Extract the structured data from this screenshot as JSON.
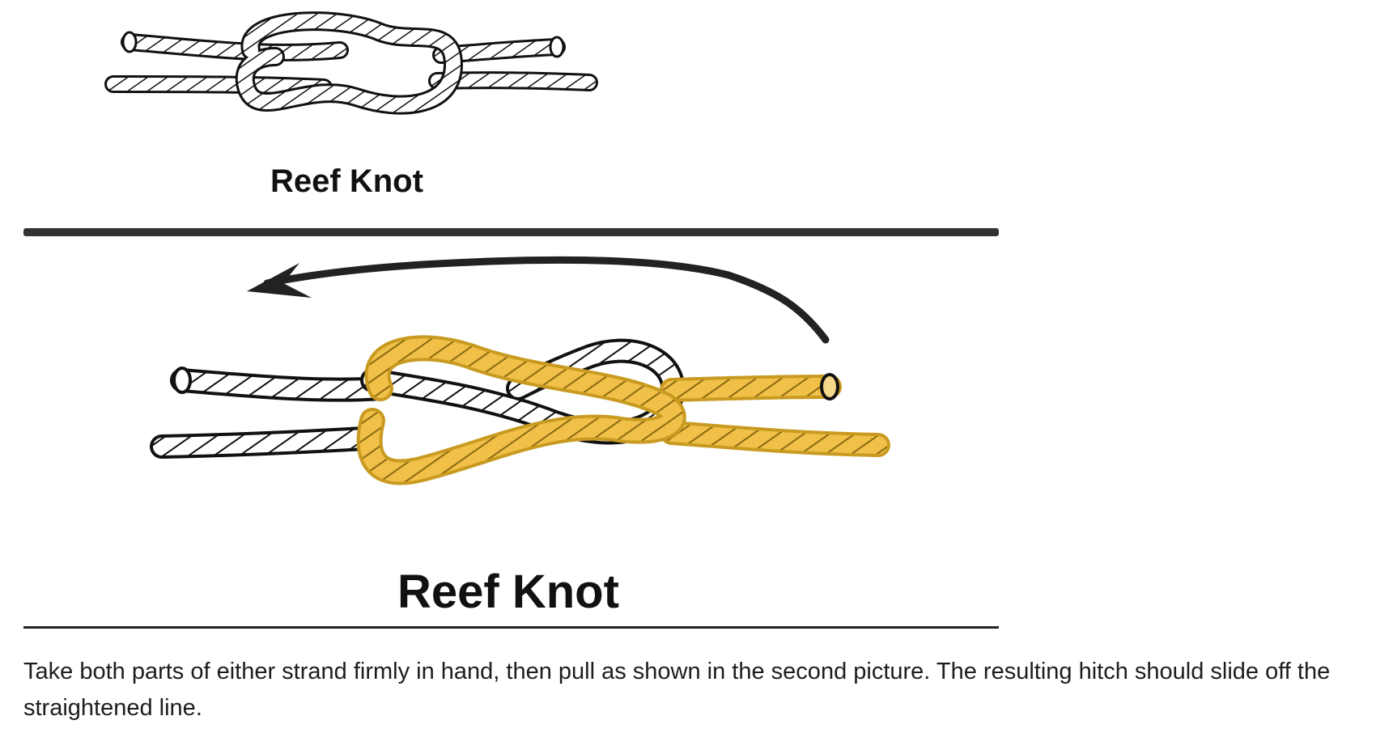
{
  "figures": [
    {
      "caption": "Reef Knot"
    },
    {
      "caption": "Reef Knot"
    }
  ],
  "colors": {
    "rope_plain": "#ffffff",
    "rope_outline": "#111111",
    "rope_highlight": "#f0c048",
    "arrow": "#222222",
    "rule": "#333333"
  },
  "icons": [
    "reef-knot-illustration",
    "reef-knot-highlighted-illustration",
    "pull-arrow-icon"
  ],
  "body": {
    "paragraph": "Take both parts of either strand firmly in hand, then pull as shown in the second picture. The resulting hitch should slide off the straightened line."
  }
}
